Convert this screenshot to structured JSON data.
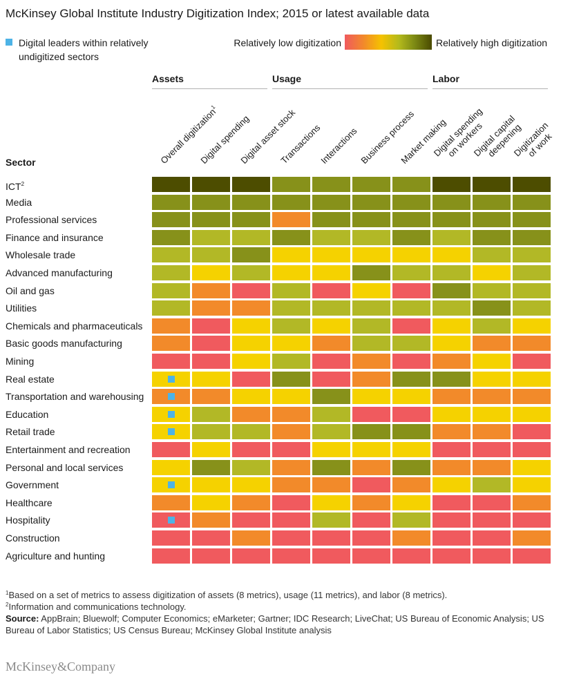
{
  "header": {
    "title": "McKinsey Global Institute Industry Digitization Index; 2015 or latest available data"
  },
  "legend": {
    "leader_text": "Digital leaders within relatively undigitized sectors",
    "low_label": "Relatively low digitization",
    "high_label": "Relatively high digitization",
    "leader_color": "#4db3e6"
  },
  "chart_data": {
    "type": "heatmap",
    "title": "McKinsey Global Institute Industry Digitization Index; 2015 or latest available data",
    "scale": "1 = relatively low digitization, 6 = relatively high digitization",
    "level_colors": {
      "1": "#f05a5e",
      "2": "#f28a2a",
      "3": "#f5d200",
      "4": "#b2b826",
      "5": "#87911a",
      "6": "#4d4d00"
    },
    "row_header": "Sector",
    "groups": [
      {
        "name": "Assets",
        "columns": [
          0,
          1,
          2
        ]
      },
      {
        "name": "Usage",
        "columns": [
          3,
          4,
          5,
          6
        ]
      },
      {
        "name": "Labor",
        "columns": [
          7,
          8,
          9
        ]
      }
    ],
    "columns": [
      {
        "label": "Overall digitization",
        "note": "1"
      },
      {
        "label": "Digital spending"
      },
      {
        "label": "Digital asset stock"
      },
      {
        "label": "Transactions"
      },
      {
        "label": "Interactions"
      },
      {
        "label": "Business process"
      },
      {
        "label": "Market making"
      },
      {
        "label": "Digital spending",
        "label2": "on workers"
      },
      {
        "label": "Digital capital",
        "label2": "deepening"
      },
      {
        "label": "Digitization",
        "label2": "of work"
      }
    ],
    "rows": [
      {
        "sector": "ICT",
        "note": "2",
        "leader": false,
        "values": [
          6,
          6,
          6,
          5,
          5,
          5,
          5,
          6,
          6,
          6
        ]
      },
      {
        "sector": "Media",
        "leader": false,
        "values": [
          5,
          5,
          5,
          5,
          5,
          5,
          5,
          5,
          5,
          5
        ]
      },
      {
        "sector": "Professional services",
        "leader": false,
        "values": [
          5,
          5,
          5,
          2,
          5,
          5,
          5,
          5,
          5,
          5
        ]
      },
      {
        "sector": "Finance and insurance",
        "leader": false,
        "values": [
          5,
          4,
          4,
          5,
          4,
          4,
          5,
          4,
          5,
          5
        ]
      },
      {
        "sector": "Wholesale trade",
        "leader": false,
        "values": [
          4,
          4,
          5,
          3,
          3,
          3,
          3,
          3,
          4,
          4
        ]
      },
      {
        "sector": "Advanced manufacturing",
        "leader": false,
        "values": [
          4,
          3,
          4,
          3,
          3,
          5,
          4,
          4,
          3,
          4
        ]
      },
      {
        "sector": "Oil and gas",
        "leader": false,
        "values": [
          4,
          2,
          1,
          4,
          1,
          3,
          1,
          5,
          4,
          4
        ]
      },
      {
        "sector": "Utilities",
        "leader": false,
        "values": [
          4,
          2,
          2,
          4,
          4,
          4,
          4,
          4,
          5,
          4
        ]
      },
      {
        "sector": "Chemicals and pharmaceuticals",
        "leader": false,
        "values": [
          2,
          1,
          3,
          4,
          3,
          4,
          1,
          3,
          4,
          3
        ]
      },
      {
        "sector": "Basic goods manufacturing",
        "leader": false,
        "values": [
          2,
          1,
          3,
          3,
          2,
          4,
          4,
          3,
          2,
          2
        ]
      },
      {
        "sector": "Mining",
        "leader": false,
        "values": [
          1,
          1,
          3,
          4,
          1,
          2,
          1,
          2,
          3,
          1
        ]
      },
      {
        "sector": "Real estate",
        "leader": true,
        "values": [
          3,
          3,
          1,
          5,
          1,
          2,
          5,
          5,
          3,
          3
        ]
      },
      {
        "sector": "Transportation and warehousing",
        "leader": true,
        "values": [
          2,
          2,
          3,
          3,
          5,
          3,
          3,
          2,
          2,
          2
        ]
      },
      {
        "sector": "Education",
        "leader": true,
        "values": [
          3,
          4,
          2,
          2,
          4,
          1,
          1,
          3,
          3,
          3
        ]
      },
      {
        "sector": "Retail trade",
        "leader": true,
        "values": [
          3,
          4,
          4,
          2,
          4,
          5,
          5,
          2,
          2,
          1
        ]
      },
      {
        "sector": "Entertainment and recreation",
        "leader": false,
        "values": [
          1,
          3,
          1,
          1,
          3,
          3,
          3,
          1,
          1,
          1
        ]
      },
      {
        "sector": "Personal and local services",
        "leader": false,
        "values": [
          3,
          5,
          4,
          2,
          5,
          2,
          5,
          2,
          2,
          3
        ]
      },
      {
        "sector": "Government",
        "leader": true,
        "values": [
          3,
          3,
          3,
          2,
          2,
          1,
          2,
          3,
          4,
          3
        ]
      },
      {
        "sector": "Healthcare",
        "leader": false,
        "values": [
          2,
          3,
          2,
          1,
          3,
          2,
          3,
          1,
          1,
          2
        ]
      },
      {
        "sector": "Hospitality",
        "leader": true,
        "values": [
          1,
          2,
          1,
          1,
          4,
          1,
          4,
          1,
          1,
          1
        ]
      },
      {
        "sector": "Construction",
        "leader": false,
        "values": [
          1,
          1,
          2,
          1,
          1,
          1,
          2,
          1,
          1,
          2
        ]
      },
      {
        "sector": "Agriculture and hunting",
        "leader": false,
        "values": [
          1,
          1,
          1,
          1,
          1,
          1,
          1,
          1,
          1,
          1
        ]
      }
    ]
  },
  "footnotes": {
    "note1_mark": "1",
    "note1_text": "Based on a set of metrics to assess digitization of assets (8 metrics), usage (11 metrics), and labor (8 metrics).",
    "note2_mark": "2",
    "note2_text": "Information and communications technology.",
    "source_label": "Source:",
    "source_text": " AppBrain; Bluewolf; Computer Economics; eMarketer; Gartner; IDC Research; LiveChat; US Bureau of Economic Analysis; US Bureau of Labor Statistics; US Census Bureau; McKinsey Global Institute analysis"
  },
  "brand": {
    "name": "McKinsey&Company"
  }
}
